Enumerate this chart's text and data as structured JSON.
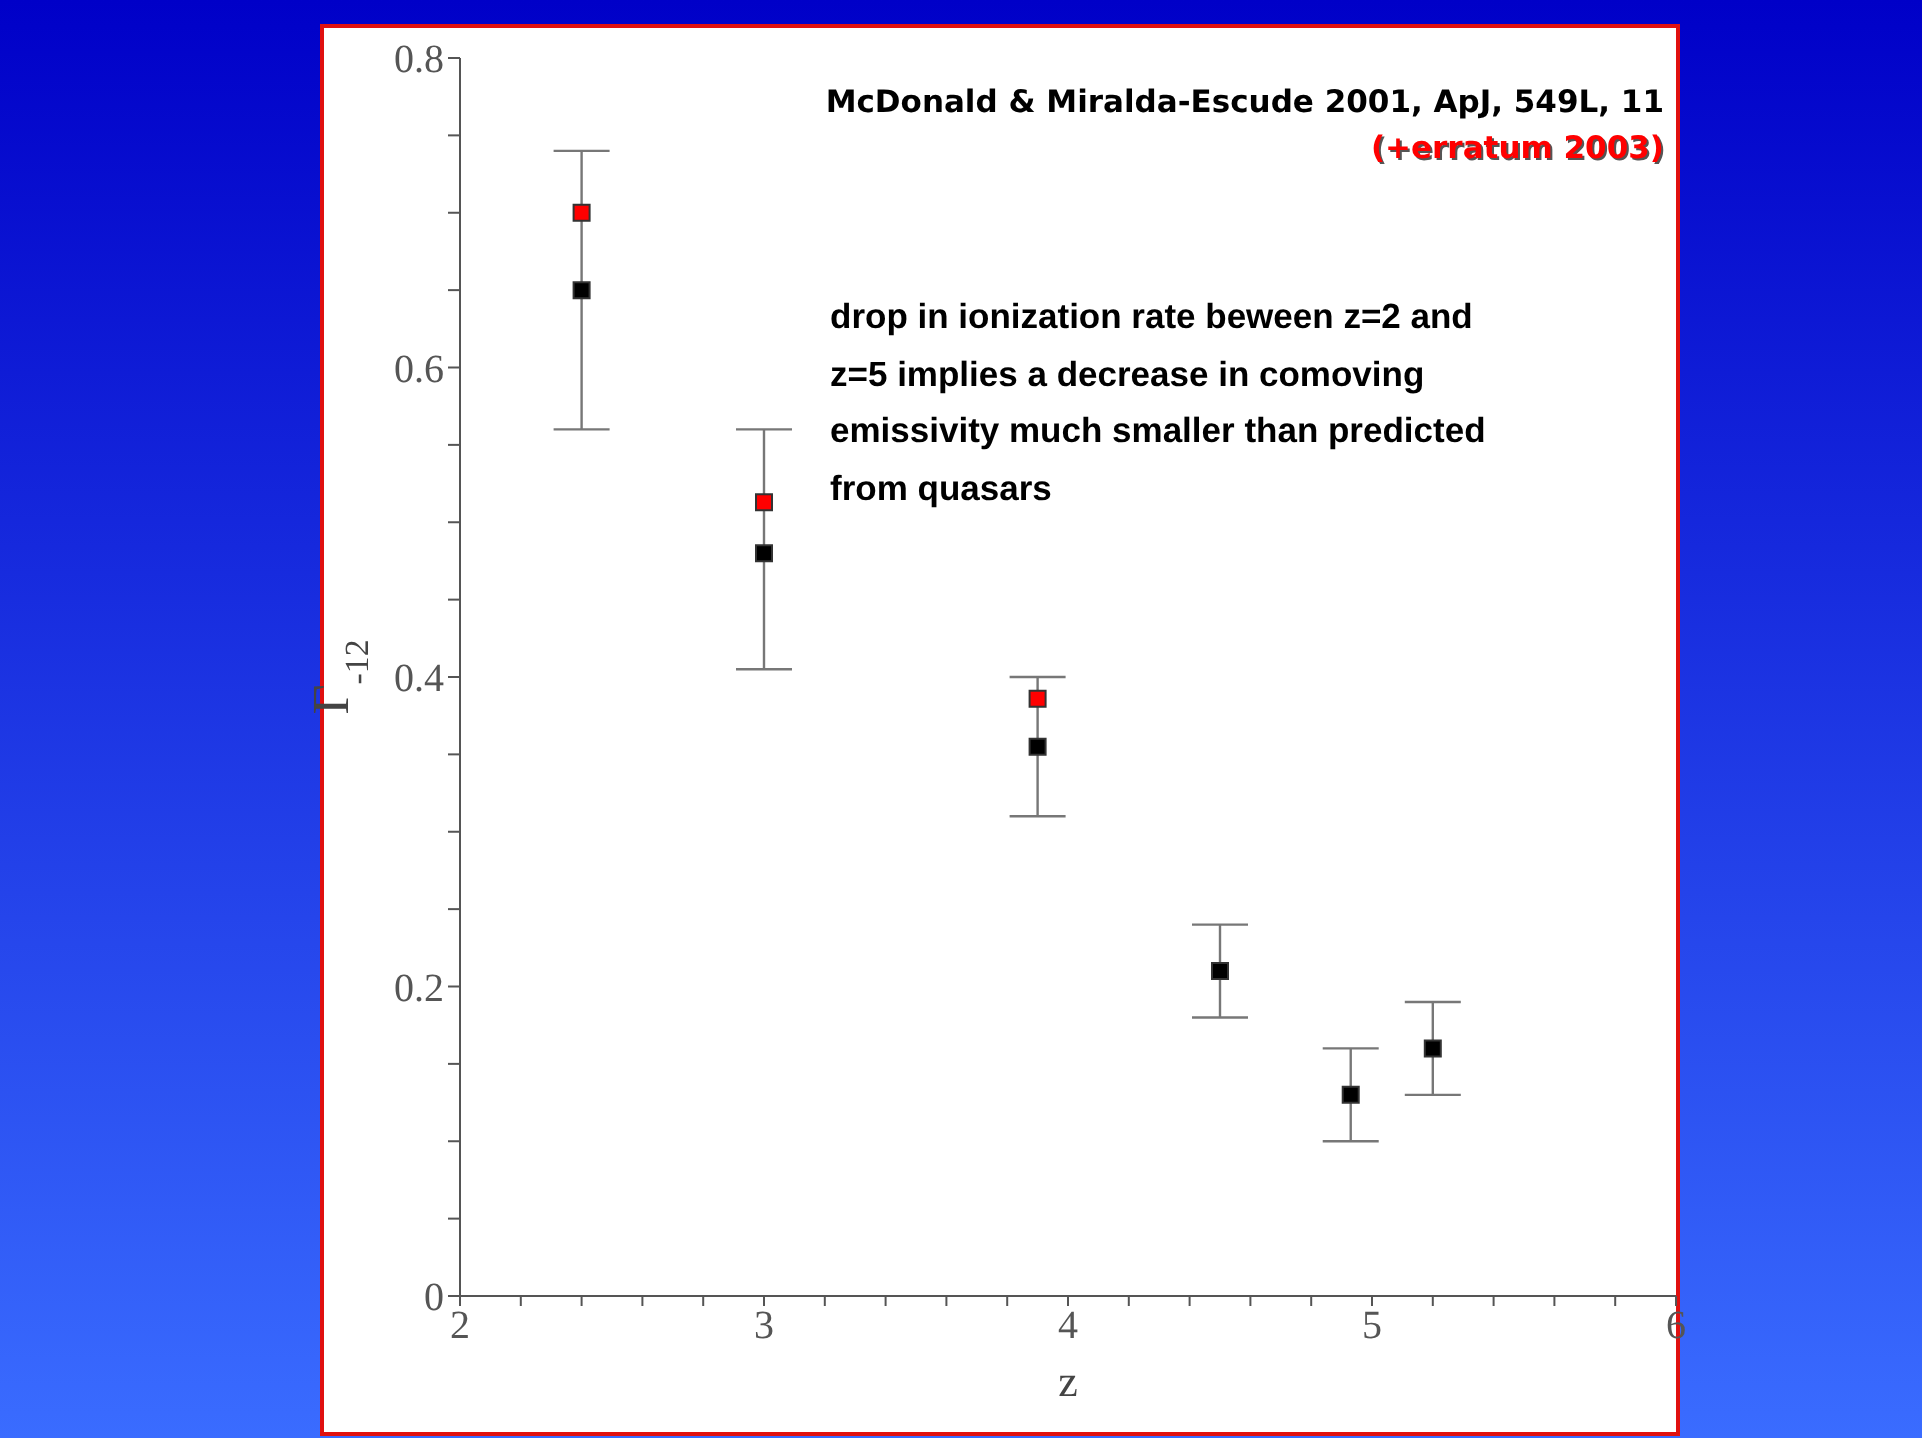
{
  "chart_data": {
    "type": "scatter",
    "xlabel": "z",
    "ylabel": "Γ$_{-12}$",
    "annotations": [
      "McDonald & Miralda-Escude 2001, ApJ, 549L, 11",
      "(+erratum 2003)",
      "drop in ionization rate beween z=2 and z=5 implies a decrease in comoving emissivity much smaller than predicted from quasars"
    ],
    "series": [
      {
        "color": "#000000",
        "x": [
          2.4,
          3.0,
          3.9,
          4.5,
          4.93,
          5.2
        ],
        "values": [
          0.65,
          0.48,
          0.355,
          0.21,
          0.13,
          0.16
        ],
        "errors": [
          [
            0.56,
            0.74
          ],
          [
            0.405,
            0.56
          ],
          [
            0.31,
            0.4
          ],
          [
            0.18,
            0.24
          ],
          [
            0.1,
            0.16
          ],
          [
            0.13,
            0.19
          ]
        ]
      },
      {
        "color": "#ff0000",
        "x": [
          2.4,
          3.0,
          3.9
        ],
        "values": [
          0.7,
          0.513,
          0.386
        ]
      }
    ],
    "xlim": [
      2,
      6
    ],
    "ylim": [
      0,
      0.8
    ],
    "xticks": [
      2,
      {
        "value": 2.2,
        "label": null
      },
      {
        "value": 2.4,
        "label": null
      },
      {
        "value": 2.6,
        "label": null
      },
      {
        "value": 2.8,
        "label": null
      },
      3,
      {
        "value": 3.2,
        "label": null
      },
      {
        "value": 3.4,
        "label": null
      },
      {
        "value": 3.6,
        "label": null
      },
      {
        "value": 3.8,
        "label": null
      },
      4,
      {
        "value": 4.2,
        "label": null
      },
      {
        "value": 4.4,
        "label": null
      },
      {
        "value": 4.6,
        "label": null
      },
      {
        "value": 4.8,
        "label": null
      },
      5,
      {
        "value": 5.2,
        "label": null
      },
      {
        "value": 5.4,
        "label": null
      },
      {
        "value": 5.6,
        "label": null
      },
      {
        "value": 5.8,
        "label": null
      },
      6
    ],
    "yticks": [
      0,
      {
        "value": 0.05,
        "label": null
      },
      {
        "value": 0.1,
        "label": null
      },
      {
        "value": 0.15,
        "label": null
      },
      0.2,
      {
        "value": 0.25,
        "label": null
      },
      {
        "value": 0.3,
        "label": null
      },
      {
        "value": 0.35,
        "label": null
      },
      0.4,
      {
        "value": 0.45,
        "label": null
      },
      {
        "value": 0.5,
        "label": null
      },
      {
        "value": 0.55,
        "label": null
      },
      0.6,
      {
        "value": 0.65,
        "label": null
      },
      {
        "value": 0.7,
        "label": null
      },
      {
        "value": 0.75,
        "label": null
      },
      0.8
    ],
    "marker": "square",
    "grid": false,
    "legend": false
  }
}
